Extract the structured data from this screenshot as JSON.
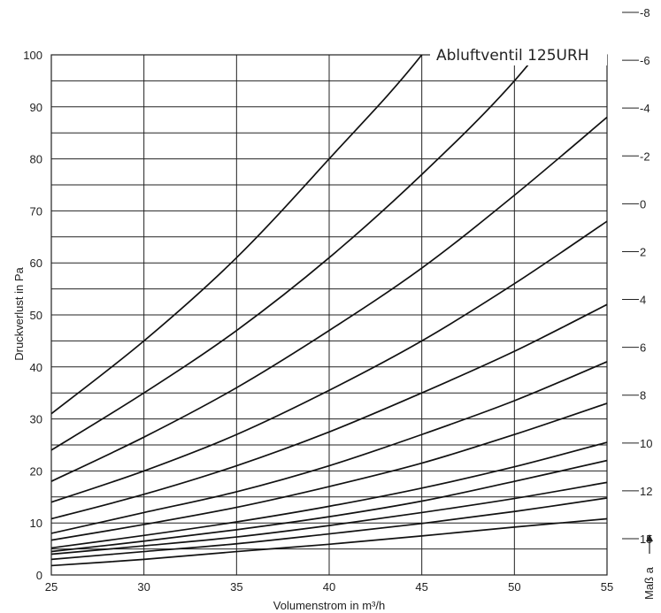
{
  "chart_data": {
    "type": "line",
    "title": "Abluftventil 125URH",
    "xlabel": "Volumenstrom in m³/h",
    "ylabel": "Druckverlust in Pa",
    "x_ticks": [
      "25",
      "30",
      "35",
      "40",
      "45",
      "50",
      "55"
    ],
    "y_ticks": [
      "0",
      "10",
      "20",
      "30",
      "40",
      "50",
      "60",
      "70",
      "80",
      "90",
      "100"
    ],
    "xlim": [
      25,
      55
    ],
    "ylim": [
      0,
      100
    ],
    "grid": true,
    "right_axis": {
      "label": "Maß a",
      "labels": [
        "-8",
        "-6",
        "-4",
        "-2",
        "0",
        "2",
        "4",
        "6",
        "8",
        "10",
        "12",
        "15"
      ]
    },
    "x": [
      25,
      30,
      35,
      40,
      45,
      50,
      55
    ],
    "series": [
      {
        "mass": "-8",
        "values": [
          31,
          45,
          61,
          80,
          100,
          null,
          null
        ]
      },
      {
        "mass": "-6",
        "values": [
          24,
          35,
          47,
          61,
          77,
          95,
          null
        ]
      },
      {
        "mass": "-4",
        "values": [
          18,
          26.5,
          36,
          47,
          59,
          73,
          88
        ]
      },
      {
        "mass": "-2",
        "values": [
          14,
          20,
          27,
          35.5,
          45,
          56,
          68
        ]
      },
      {
        "mass": "0",
        "values": [
          10.8,
          15.5,
          21,
          27.5,
          35,
          43,
          52
        ]
      },
      {
        "mass": "2",
        "values": [
          8,
          12,
          16,
          21,
          27,
          33.5,
          41
        ]
      },
      {
        "mass": "4",
        "values": [
          6.7,
          9.7,
          13,
          17,
          21.5,
          27,
          33
        ]
      },
      {
        "mass": "6",
        "values": [
          5.2,
          7.6,
          10.2,
          13.2,
          16.7,
          20.8,
          25.5
        ]
      },
      {
        "mass": "8",
        "values": [
          4.5,
          6.5,
          8.7,
          11.2,
          14.2,
          18,
          22
        ]
      },
      {
        "mass": "10",
        "values": [
          4,
          5.6,
          7.3,
          9.5,
          12,
          14.7,
          17.8
        ]
      },
      {
        "mass": "12",
        "values": [
          3,
          4.5,
          6,
          7.9,
          9.9,
          12.2,
          14.8
        ]
      },
      {
        "mass": "15",
        "values": [
          1.8,
          3,
          4.5,
          5.9,
          7.5,
          9.2,
          10.8
        ]
      }
    ]
  }
}
